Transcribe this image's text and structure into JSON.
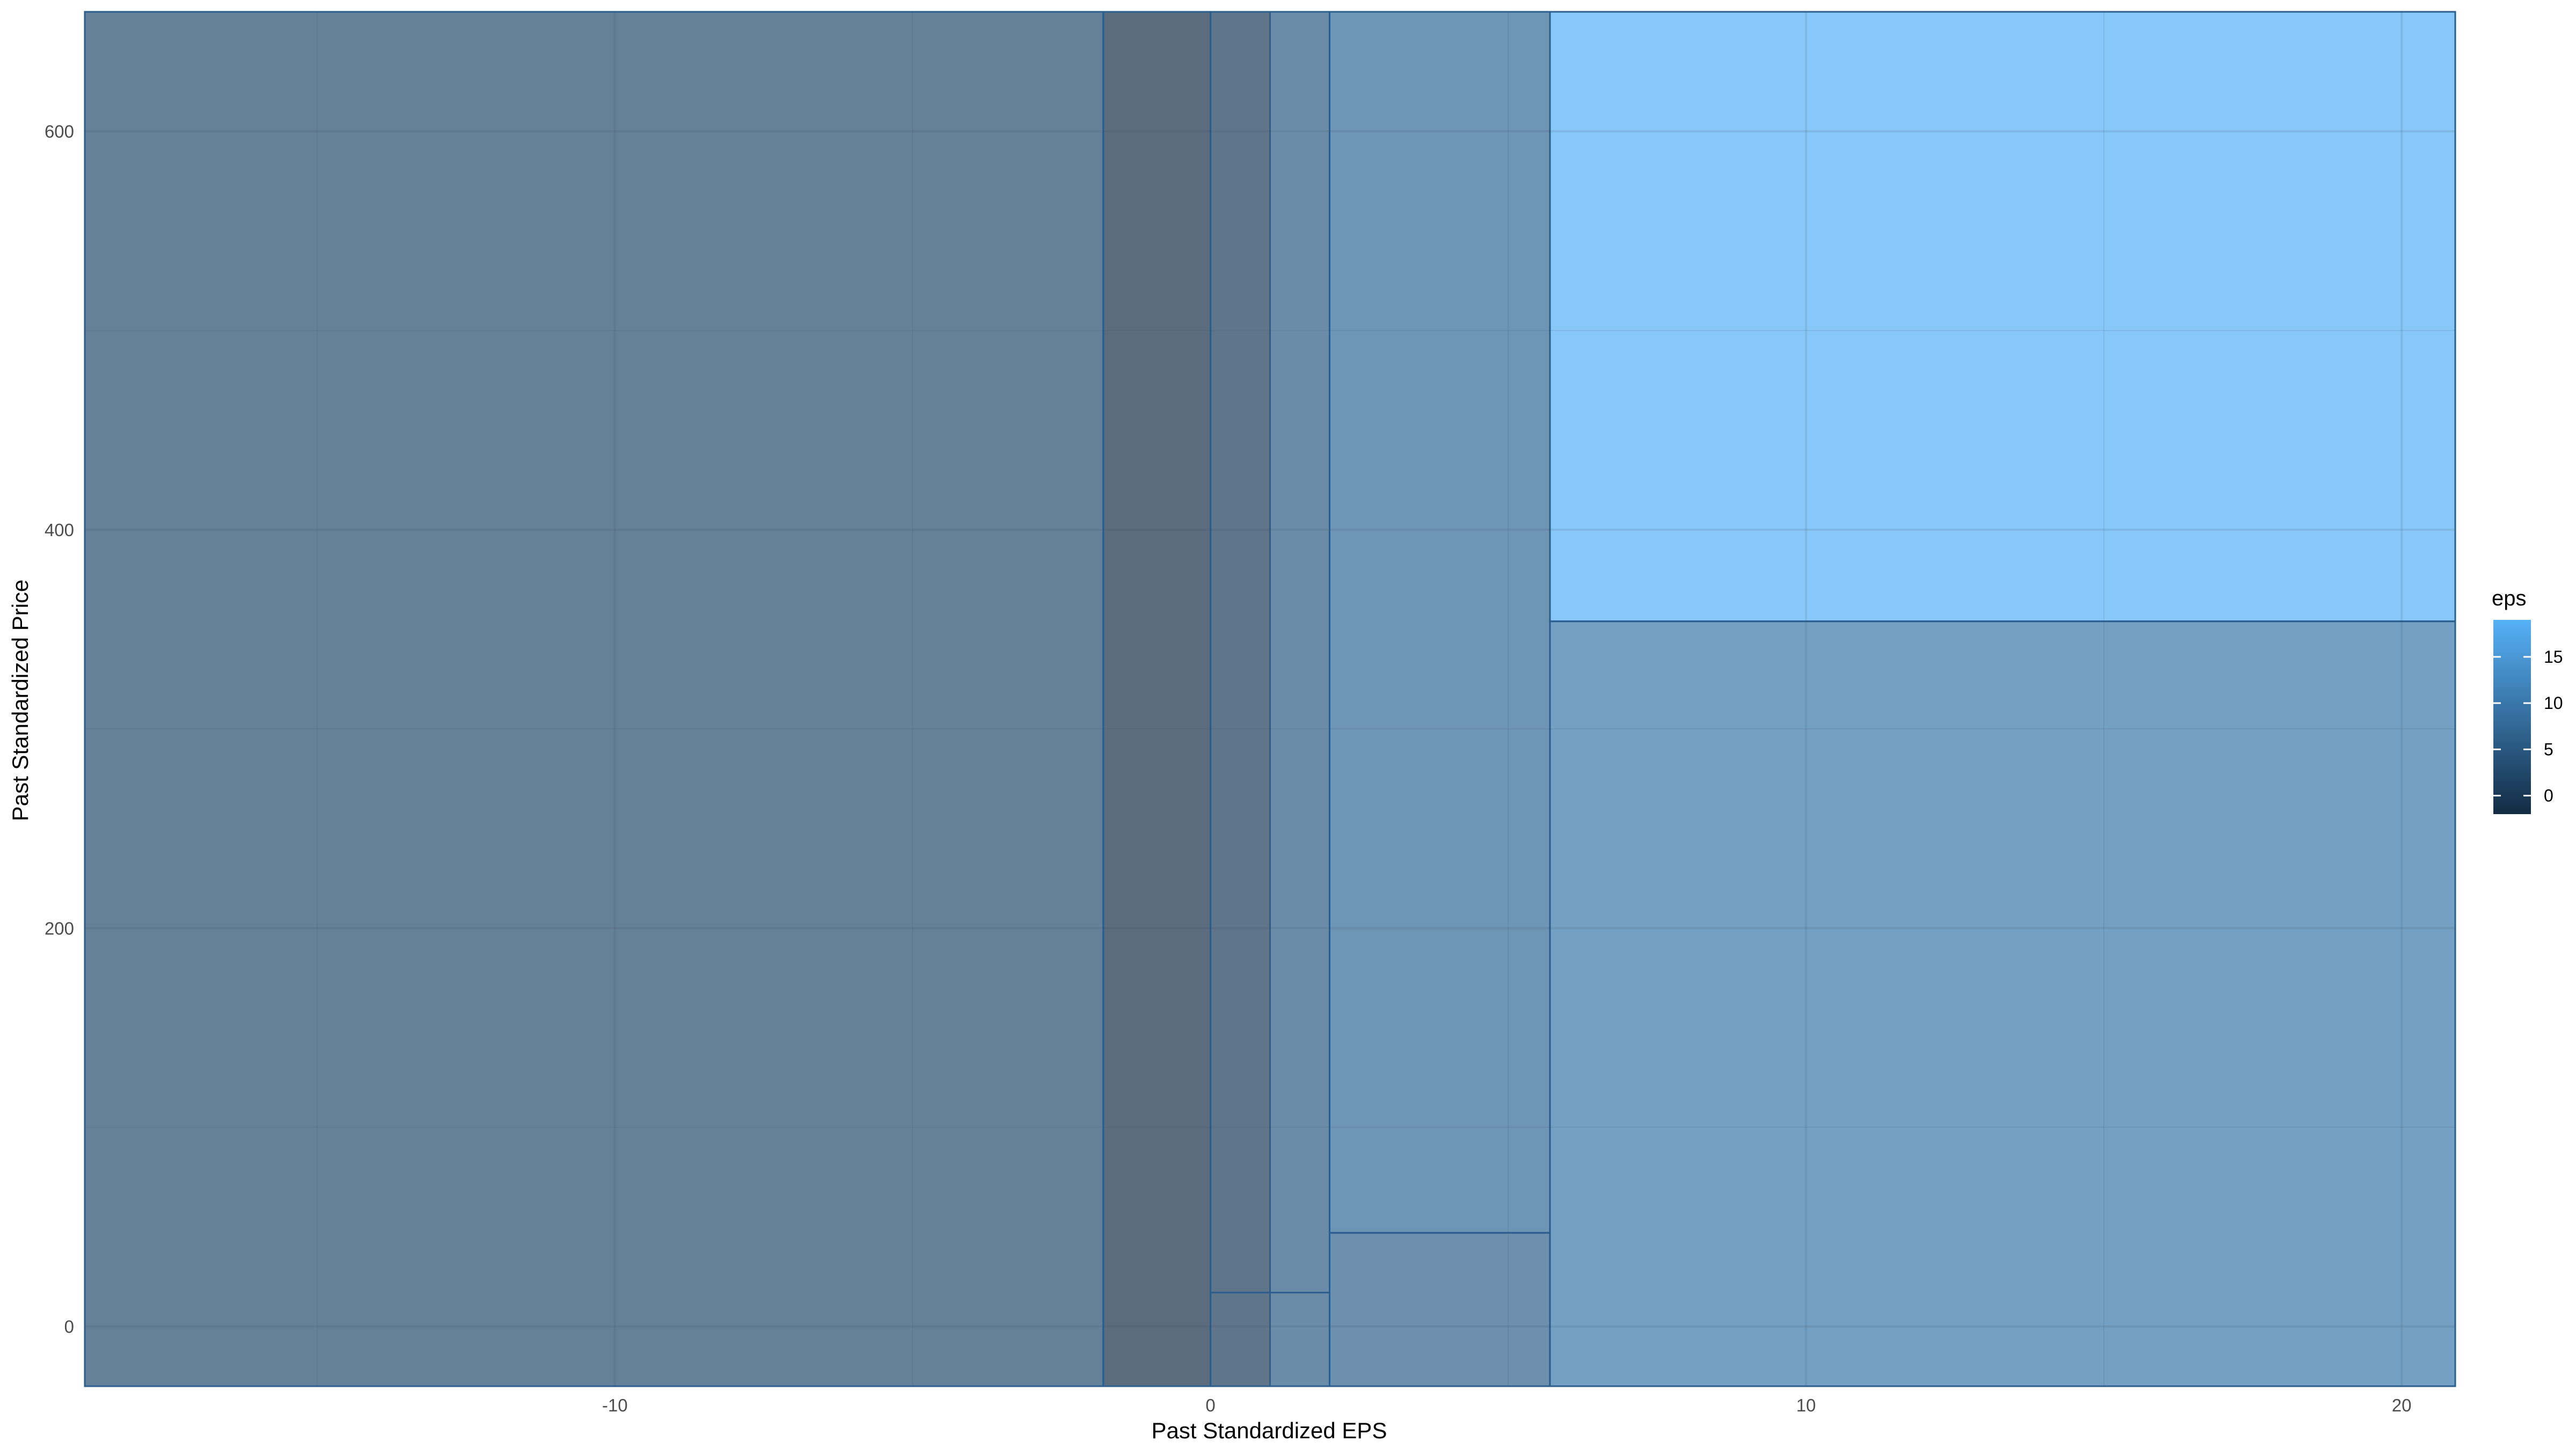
{
  "chart_data": {
    "type": "heatmap",
    "xlabel": "Past Standardized EPS",
    "ylabel": "Past Standardized Price",
    "xlim": [
      -18.9,
      20.9
    ],
    "ylim": [
      -30,
      660
    ],
    "x_ticks": [
      -10,
      0,
      10,
      20
    ],
    "y_ticks": [
      0,
      200,
      400,
      600
    ],
    "grid": true,
    "legend": {
      "title": "eps",
      "position": "right",
      "ticks": [
        0,
        5,
        10,
        15
      ],
      "range": [
        -2,
        19
      ],
      "color_low": "#132B43",
      "color_high": "#56B1F7"
    },
    "cells": [
      {
        "x0": -18.9,
        "x1": -1.8,
        "y0": -30,
        "y1": 660,
        "eps": 2.9
      },
      {
        "x0": -1.8,
        "x1": 0.0,
        "y0": -30,
        "y1": 660,
        "eps": -1.5
      },
      {
        "x0": 0.0,
        "x1": 1.0,
        "y0": 17,
        "y1": 660,
        "eps": 0.5
      },
      {
        "x0": 0.0,
        "x1": 1.0,
        "y0": -30,
        "y1": 17,
        "eps": 0.5
      },
      {
        "x0": 1.0,
        "x1": 2.0,
        "y0": 17,
        "y1": 660,
        "eps": 5.5
      },
      {
        "x0": 1.0,
        "x1": 2.0,
        "y0": -30,
        "y1": 17,
        "eps": 5.5
      },
      {
        "x0": 2.0,
        "x1": 5.7,
        "y0": 47,
        "y1": 660,
        "eps": 7.5
      },
      {
        "x0": 2.0,
        "x1": 5.7,
        "y0": -30,
        "y1": 47,
        "eps": 6.5
      },
      {
        "x0": 5.7,
        "x1": 20.9,
        "y0": 354,
        "y1": 660,
        "eps": 19.0
      },
      {
        "x0": 5.7,
        "x1": 20.9,
        "y0": -30,
        "y1": 354,
        "eps": 10.0
      }
    ]
  }
}
